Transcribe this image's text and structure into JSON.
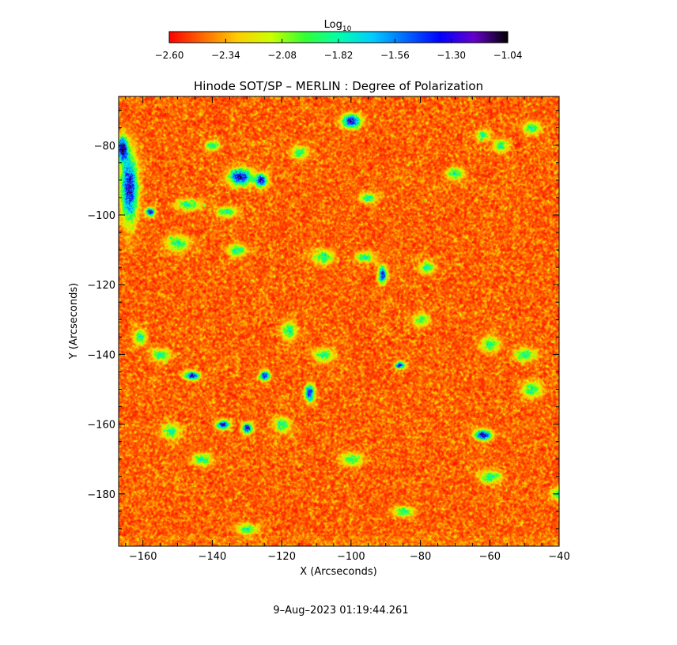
{
  "chart_data": {
    "type": "heatmap",
    "title": "Hinode SOT/SP – MERLIN : Degree of Polarization",
    "xlabel": "X (Arcseconds)",
    "ylabel": "Y (Arcseconds)",
    "xlim": [
      -167,
      -40
    ],
    "ylim": [
      -195,
      -66
    ],
    "x_ticks": [
      -160,
      -140,
      -120,
      -100,
      -80,
      -60,
      -40
    ],
    "y_ticks": [
      -180,
      -160,
      -140,
      -120,
      -100,
      -80
    ],
    "x_tick_labels": [
      "−160",
      "−140",
      "−120",
      "−100",
      "−80",
      "−60",
      "−40"
    ],
    "y_tick_labels": [
      "−180",
      "−160",
      "−140",
      "−120",
      "−100",
      "−80"
    ],
    "colorbar": {
      "label_base": "Log",
      "label_sub": "10",
      "range": [
        -2.6,
        -1.04
      ],
      "ticks": [
        -2.6,
        -2.34,
        -2.08,
        -1.82,
        -1.56,
        -1.3,
        -1.04
      ],
      "tick_labels": [
        "−2.60",
        "−2.34",
        "−2.08",
        "−1.82",
        "−1.56",
        "−1.30",
        "−1.04"
      ],
      "colormap": [
        "#ff0000",
        "#ff6a00",
        "#ffcc00",
        "#ccff00",
        "#33ff33",
        "#00ffaa",
        "#00ccff",
        "#0066ff",
        "#0000ff",
        "#6600cc",
        "#000000"
      ]
    },
    "field_colors": {
      "dominant": "#ff3300",
      "speckle": "#ffcc00",
      "patch_edge": "#33ff33",
      "patch_mid": "#00ccff",
      "patch_core": "#0000cc"
    },
    "strong_patches": [
      {
        "x": -164,
        "y": -92,
        "sx": 1.6,
        "sy": 6.5
      },
      {
        "x": -166,
        "y": -81,
        "sx": 1.0,
        "sy": 2.5
      },
      {
        "x": -132,
        "y": -89,
        "sx": 2.2,
        "sy": 1.6
      },
      {
        "x": -126,
        "y": -90,
        "sx": 1.2,
        "sy": 1.2
      },
      {
        "x": -100,
        "y": -73,
        "sx": 1.8,
        "sy": 1.3
      },
      {
        "x": -91,
        "y": -117,
        "sx": 0.8,
        "sy": 1.6
      },
      {
        "x": -146,
        "y": -146,
        "sx": 1.4,
        "sy": 0.8
      },
      {
        "x": -125,
        "y": -146,
        "sx": 1.0,
        "sy": 0.9
      },
      {
        "x": -112,
        "y": -151,
        "sx": 0.9,
        "sy": 1.6
      },
      {
        "x": -86,
        "y": -143,
        "sx": 0.9,
        "sy": 0.7
      },
      {
        "x": -137,
        "y": -160,
        "sx": 1.3,
        "sy": 0.8
      },
      {
        "x": -130,
        "y": -161,
        "sx": 1.0,
        "sy": 1.0
      },
      {
        "x": -62,
        "y": -163,
        "sx": 1.6,
        "sy": 1.0
      },
      {
        "x": -158,
        "y": -99,
        "sx": 0.9,
        "sy": 0.8
      }
    ],
    "weak_patches": [
      {
        "x": -147,
        "y": -97,
        "sx": 2.5,
        "sy": 1.0
      },
      {
        "x": -136,
        "y": -99,
        "sx": 2.0,
        "sy": 1.0
      },
      {
        "x": -150,
        "y": -108,
        "sx": 2.2,
        "sy": 1.5
      },
      {
        "x": -133,
        "y": -110,
        "sx": 1.8,
        "sy": 1.2
      },
      {
        "x": -108,
        "y": -112,
        "sx": 2.0,
        "sy": 1.4
      },
      {
        "x": -96,
        "y": -112,
        "sx": 1.8,
        "sy": 1.0
      },
      {
        "x": -155,
        "y": -140,
        "sx": 1.8,
        "sy": 1.2
      },
      {
        "x": -118,
        "y": -133,
        "sx": 1.5,
        "sy": 1.8
      },
      {
        "x": -120,
        "y": -160,
        "sx": 1.6,
        "sy": 1.4
      },
      {
        "x": -108,
        "y": -140,
        "sx": 2.0,
        "sy": 1.2
      },
      {
        "x": -60,
        "y": -137,
        "sx": 1.8,
        "sy": 1.5
      },
      {
        "x": -50,
        "y": -140,
        "sx": 2.0,
        "sy": 1.2
      },
      {
        "x": -48,
        "y": -150,
        "sx": 1.8,
        "sy": 1.6
      },
      {
        "x": -57,
        "y": -80,
        "sx": 1.4,
        "sy": 1.2
      },
      {
        "x": -48,
        "y": -75,
        "sx": 1.6,
        "sy": 1.2
      },
      {
        "x": -62,
        "y": -77,
        "sx": 1.2,
        "sy": 1.0
      },
      {
        "x": -161,
        "y": -135,
        "sx": 1.2,
        "sy": 1.5
      },
      {
        "x": -152,
        "y": -162,
        "sx": 1.8,
        "sy": 1.4
      },
      {
        "x": -143,
        "y": -170,
        "sx": 1.8,
        "sy": 1.2
      },
      {
        "x": -100,
        "y": -170,
        "sx": 2.0,
        "sy": 1.2
      },
      {
        "x": -95,
        "y": -95,
        "sx": 1.6,
        "sy": 1.0
      },
      {
        "x": -80,
        "y": -130,
        "sx": 1.5,
        "sy": 1.2
      },
      {
        "x": -78,
        "y": -115,
        "sx": 1.4,
        "sy": 1.2
      },
      {
        "x": -60,
        "y": -175,
        "sx": 2.0,
        "sy": 1.2
      },
      {
        "x": -40,
        "y": -180,
        "sx": 1.5,
        "sy": 1.2
      },
      {
        "x": -85,
        "y": -185,
        "sx": 2.0,
        "sy": 1.0
      },
      {
        "x": -130,
        "y": -190,
        "sx": 2.0,
        "sy": 1.0
      },
      {
        "x": -70,
        "y": -88,
        "sx": 1.6,
        "sy": 1.2
      },
      {
        "x": -115,
        "y": -82,
        "sx": 1.6,
        "sy": 1.2
      },
      {
        "x": -140,
        "y": -80,
        "sx": 1.4,
        "sy": 1.0
      }
    ]
  },
  "footer": {
    "timestamp": "9–Aug–2023 01:19:44.261"
  }
}
